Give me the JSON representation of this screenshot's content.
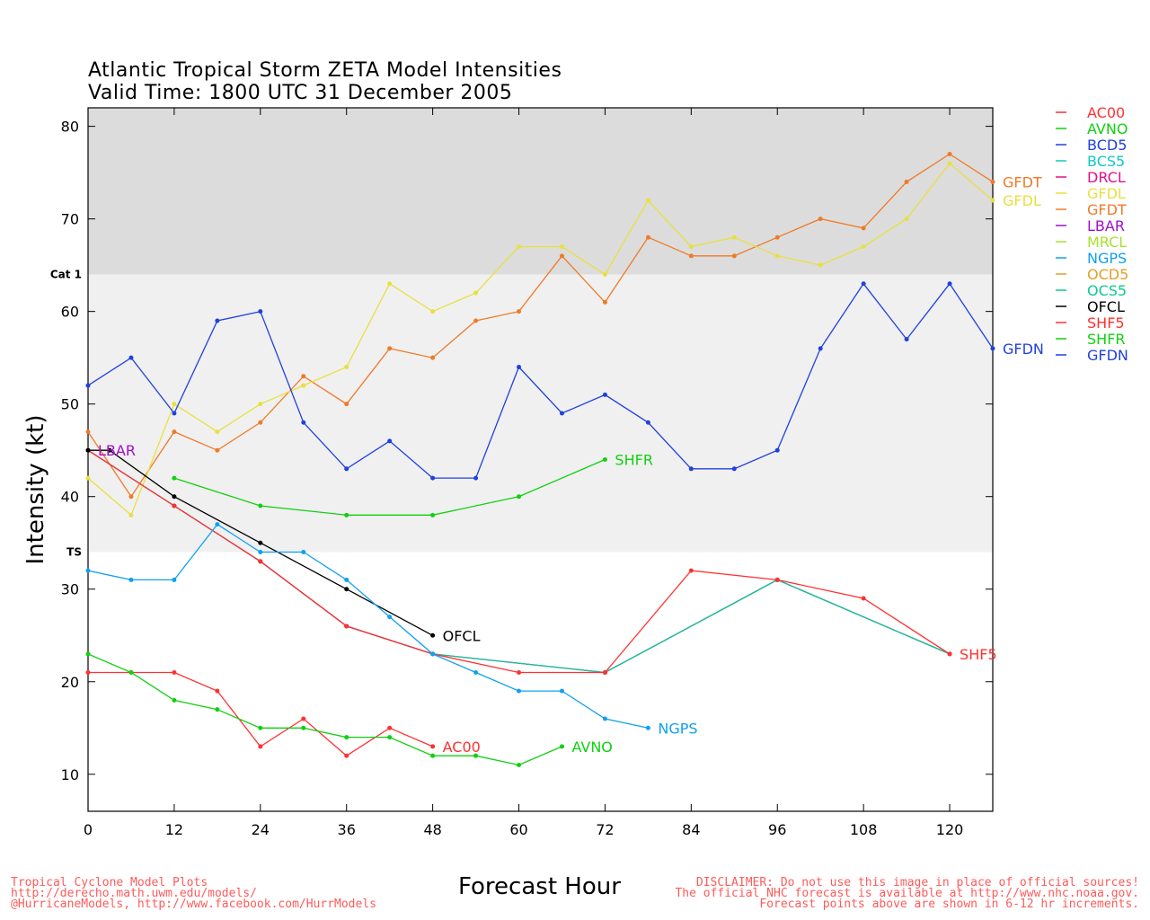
{
  "title": "Atlantic Tropical Storm ZETA Model Intensities",
  "subtitle": "Valid Time: 1800 UTC 31 December 2005",
  "xlabel": "Forecast Hour",
  "ylabel": "Intensity (kt)",
  "footer_left": [
    "Tropical Cyclone Model Plots",
    "http://derecho.math.uwm.edu/models/",
    "@HurricaneModels, http://www.facebook.com/HurrModels"
  ],
  "footer_right": [
    "DISCLAIMER: Do not use this image in place of official sources!",
    "The official NHC forecast is available at http://www.nhc.noaa.gov.",
    "Forecast points above are shown in 6-12 hr increments."
  ],
  "chart_data": {
    "type": "line",
    "title": "Atlantic Tropical Storm ZETA Model Intensities",
    "subtitle": "Valid Time: 1800 UTC 31 December 2005",
    "xlabel": "Forecast Hour",
    "ylabel": "Intensity (kt)",
    "xlim": [
      0,
      126
    ],
    "ylim": [
      6,
      82
    ],
    "x_ticks": [
      0,
      12,
      24,
      36,
      48,
      60,
      72,
      84,
      96,
      108,
      120
    ],
    "y_ticks": [
      10,
      20,
      30,
      40,
      50,
      60,
      70,
      80
    ],
    "bands": [
      {
        "label": "TS",
        "from": 34,
        "to": 64,
        "color": "#f0f0f0"
      },
      {
        "label": "Cat 1",
        "from": 64,
        "to": 82,
        "color": "#dcdcdc"
      }
    ],
    "legend_position": "right",
    "legend": [
      {
        "name": "AC00",
        "color": "#ff3030"
      },
      {
        "name": "AVNO",
        "color": "#10d010"
      },
      {
        "name": "BCD5",
        "color": "#2040e0"
      },
      {
        "name": "BCS5",
        "color": "#10c8c8"
      },
      {
        "name": "DRCL",
        "color": "#e0108a"
      },
      {
        "name": "GFDL",
        "color": "#e8e040"
      },
      {
        "name": "GFDT",
        "color": "#f07a28"
      },
      {
        "name": "LBAR",
        "color": "#a010c8"
      },
      {
        "name": "MRCL",
        "color": "#a8e030"
      },
      {
        "name": "NGPS",
        "color": "#10a0f0"
      },
      {
        "name": "OCD5",
        "color": "#e0a028"
      },
      {
        "name": "OCS5",
        "color": "#10c890"
      },
      {
        "name": "OFCL",
        "color": "#000000"
      },
      {
        "name": "SHF5",
        "color": "#ff3030"
      },
      {
        "name": "SHFR",
        "color": "#10d010"
      },
      {
        "name": "GFDN",
        "color": "#2040e0"
      }
    ],
    "series": [
      {
        "name": "GFDT",
        "color": "#f07a28",
        "end_label": "GFDT",
        "x": [
          0,
          6,
          12,
          18,
          24,
          30,
          36,
          42,
          48,
          54,
          60,
          66,
          72,
          78,
          84,
          90,
          96,
          102,
          108,
          114,
          120,
          126
        ],
        "y": [
          47,
          40,
          47,
          45,
          48,
          53,
          50,
          56,
          55,
          59,
          60,
          66,
          61,
          68,
          66,
          66,
          68,
          70,
          69,
          74,
          77,
          74
        ]
      },
      {
        "name": "GFDL",
        "color": "#e8e040",
        "end_label": "GFDL",
        "x": [
          0,
          6,
          12,
          18,
          24,
          30,
          36,
          42,
          48,
          54,
          60,
          66,
          72,
          78,
          84,
          90,
          96,
          102,
          108,
          114,
          120,
          126
        ],
        "y": [
          42,
          38,
          50,
          47,
          50,
          52,
          54,
          63,
          60,
          62,
          67,
          67,
          64,
          72,
          67,
          68,
          66,
          65,
          67,
          70,
          76,
          72
        ]
      },
      {
        "name": "GFDN",
        "color": "#2040e0",
        "end_label": "GFDN",
        "x": [
          0,
          6,
          12,
          18,
          24,
          30,
          36,
          42,
          48,
          54,
          60,
          66,
          72,
          78,
          84,
          90,
          96,
          102,
          108,
          114,
          120,
          126
        ],
        "y": [
          52,
          55,
          49,
          59,
          60,
          48,
          43,
          46,
          42,
          42,
          54,
          49,
          51,
          48,
          43,
          43,
          45,
          56,
          63,
          57,
          63,
          56
        ]
      },
      {
        "name": "SHFR",
        "color": "#10d010",
        "end_label": "SHFR",
        "x": [
          12,
          24,
          36,
          48,
          60,
          72
        ],
        "y": [
          42,
          39,
          38,
          38,
          40,
          44
        ]
      },
      {
        "name": "LBAR",
        "color": "#a010c8",
        "start_label": "LBAR",
        "x": [
          0,
          12,
          24,
          36,
          48,
          72,
          96,
          120
        ],
        "y": [
          45,
          39,
          33,
          26,
          23,
          21,
          31,
          23
        ]
      },
      {
        "name": "OCS5",
        "color": "#10c890",
        "x": [
          0,
          12,
          24,
          36,
          48,
          72,
          96,
          120
        ],
        "y": [
          45,
          39,
          33,
          26,
          23,
          21,
          31,
          23
        ]
      },
      {
        "name": "SHF5",
        "color": "#ff3030",
        "end_label": "SHF5",
        "x": [
          0,
          12,
          24,
          36,
          48,
          60,
          72,
          84,
          96,
          108,
          120
        ],
        "y": [
          45,
          39,
          33,
          26,
          23,
          21,
          21,
          32,
          31,
          29,
          23
        ]
      },
      {
        "name": "OFCL",
        "color": "#000000",
        "end_label": "OFCL",
        "x": [
          0,
          3,
          12,
          24,
          36,
          48
        ],
        "y": [
          45,
          45,
          40,
          35,
          30,
          25
        ]
      },
      {
        "name": "NGPS",
        "color": "#10a0f0",
        "end_label": "NGPS",
        "x": [
          0,
          6,
          12,
          18,
          24,
          30,
          36,
          42,
          48,
          54,
          60,
          66,
          72,
          78
        ],
        "y": [
          32,
          31,
          31,
          37,
          34,
          34,
          31,
          27,
          23,
          21,
          19,
          19,
          16,
          15
        ]
      },
      {
        "name": "AC00",
        "color": "#ff3030",
        "end_label": "AC00",
        "x": [
          0,
          6,
          12,
          18,
          24,
          30,
          36,
          42,
          48
        ],
        "y": [
          21,
          21,
          21,
          19,
          13,
          16,
          12,
          15,
          13
        ]
      },
      {
        "name": "AVNO",
        "color": "#10d010",
        "end_label": "AVNO",
        "x": [
          0,
          6,
          12,
          18,
          24,
          30,
          36,
          42,
          48,
          54,
          60,
          66
        ],
        "y": [
          23,
          21,
          18,
          17,
          15,
          15,
          14,
          14,
          12,
          12,
          11,
          13
        ]
      }
    ]
  }
}
